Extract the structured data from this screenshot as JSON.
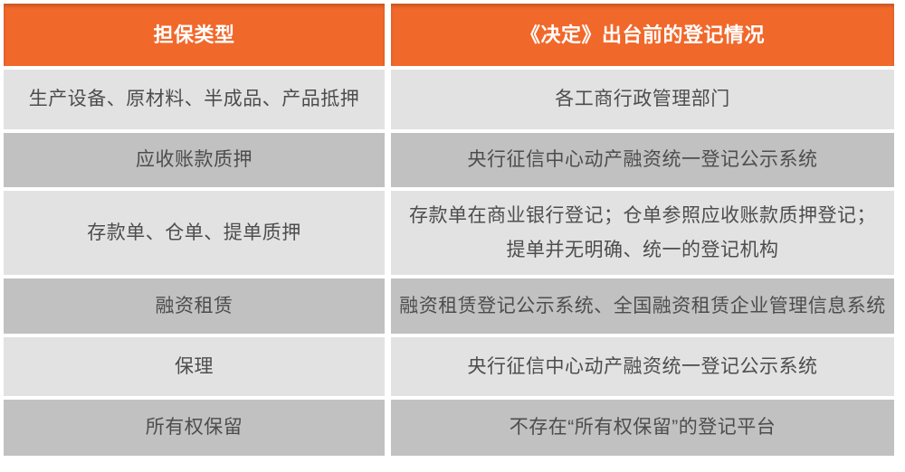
{
  "chart_data": {
    "type": "table",
    "title": "",
    "columns": [
      "担保类型",
      "《决定》出台前的登记情况"
    ],
    "rows": [
      [
        "生产设备、原材料、半成品、产品抵押",
        "各工商行政管理部门"
      ],
      [
        "应收账款质押",
        "央行征信中心动产融资统一登记公示系统"
      ],
      [
        "存款单、仓单、提单质押",
        "存款单在商业银行登记；仓单参照应收账款质押登记；\n提单并无明确、统一的登记机构"
      ],
      [
        "融资租赁",
        "融资租赁登记公示系统、全国融资租赁企业管理信息系统"
      ],
      [
        "保理",
        "央行征信中心动产融资统一登记公示系统"
      ],
      [
        "所有权保留",
        "不存在“所有权保留”的登记平台"
      ]
    ],
    "layout_hints": {
      "header_style": "orange background, white bold text",
      "row_striping": "alternating light gray / dark gray starting with light"
    }
  },
  "colors": {
    "header_bg": "#F1682B",
    "header_text": "#FFFFFF",
    "row_light": "#E2E2E2",
    "row_dark": "#C1C1C1",
    "cell_text": "#4D4D4D",
    "page_bg": "#FFFFFF"
  }
}
